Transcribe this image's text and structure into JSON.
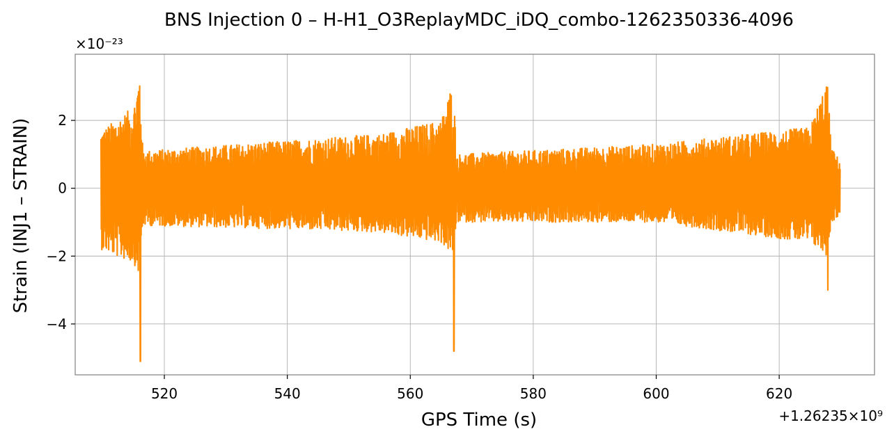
{
  "chart_data": {
    "type": "line",
    "title": "BNS Injection 0 – H-H1_O3ReplayMDC_iDQ_combo-1262350336-4096",
    "xlabel": "GPS Time (s)",
    "ylabel": "Strain (INJ1 – STRAIN)",
    "x_offset_label": "+1.26235×10⁹",
    "y_scale_label": "×10⁻²³",
    "xlim": [
      505.5,
      635.5
    ],
    "ylim": [
      -5.5,
      3.95
    ],
    "xticks": [
      520,
      540,
      560,
      580,
      600,
      620
    ],
    "yticks": [
      -4,
      -2,
      0,
      2
    ],
    "ytick_labels": [
      "−4",
      "−2",
      "0",
      "2"
    ],
    "grid": true,
    "series": [
      {
        "color": "#ff8c00",
        "x_range": [
          509.7,
          629.9
        ],
        "envelope": [
          {
            "x": 509.7,
            "min": -1.8,
            "max": 1.7
          },
          {
            "x": 512.0,
            "min": -2.0,
            "max": 2.0
          },
          {
            "x": 515.0,
            "min": -2.2,
            "max": 2.4
          },
          {
            "x": 516.0,
            "min": -2.6,
            "max": 3.5
          },
          {
            "x": 516.5,
            "min": -1.1,
            "max": 1.1
          },
          {
            "x": 540.0,
            "min": -1.2,
            "max": 1.4
          },
          {
            "x": 555.0,
            "min": -1.3,
            "max": 1.6
          },
          {
            "x": 565.0,
            "min": -1.6,
            "max": 2.0
          },
          {
            "x": 567.0,
            "min": -2.0,
            "max": 3.2
          },
          {
            "x": 567.5,
            "min": -1.0,
            "max": 1.0
          },
          {
            "x": 600.0,
            "min": -1.0,
            "max": 1.3
          },
          {
            "x": 625.0,
            "min": -1.6,
            "max": 1.8
          },
          {
            "x": 627.8,
            "min": -2.0,
            "max": 3.2
          },
          {
            "x": 628.5,
            "min": -1.0,
            "max": 1.2
          },
          {
            "x": 629.9,
            "min": -0.8,
            "max": 0.8
          }
        ],
        "peaks": [
          {
            "x": 516.1,
            "value": -5.1
          },
          {
            "x": 567.1,
            "value": -4.8
          },
          {
            "x": 627.9,
            "value": -3.0
          }
        ]
      }
    ]
  }
}
